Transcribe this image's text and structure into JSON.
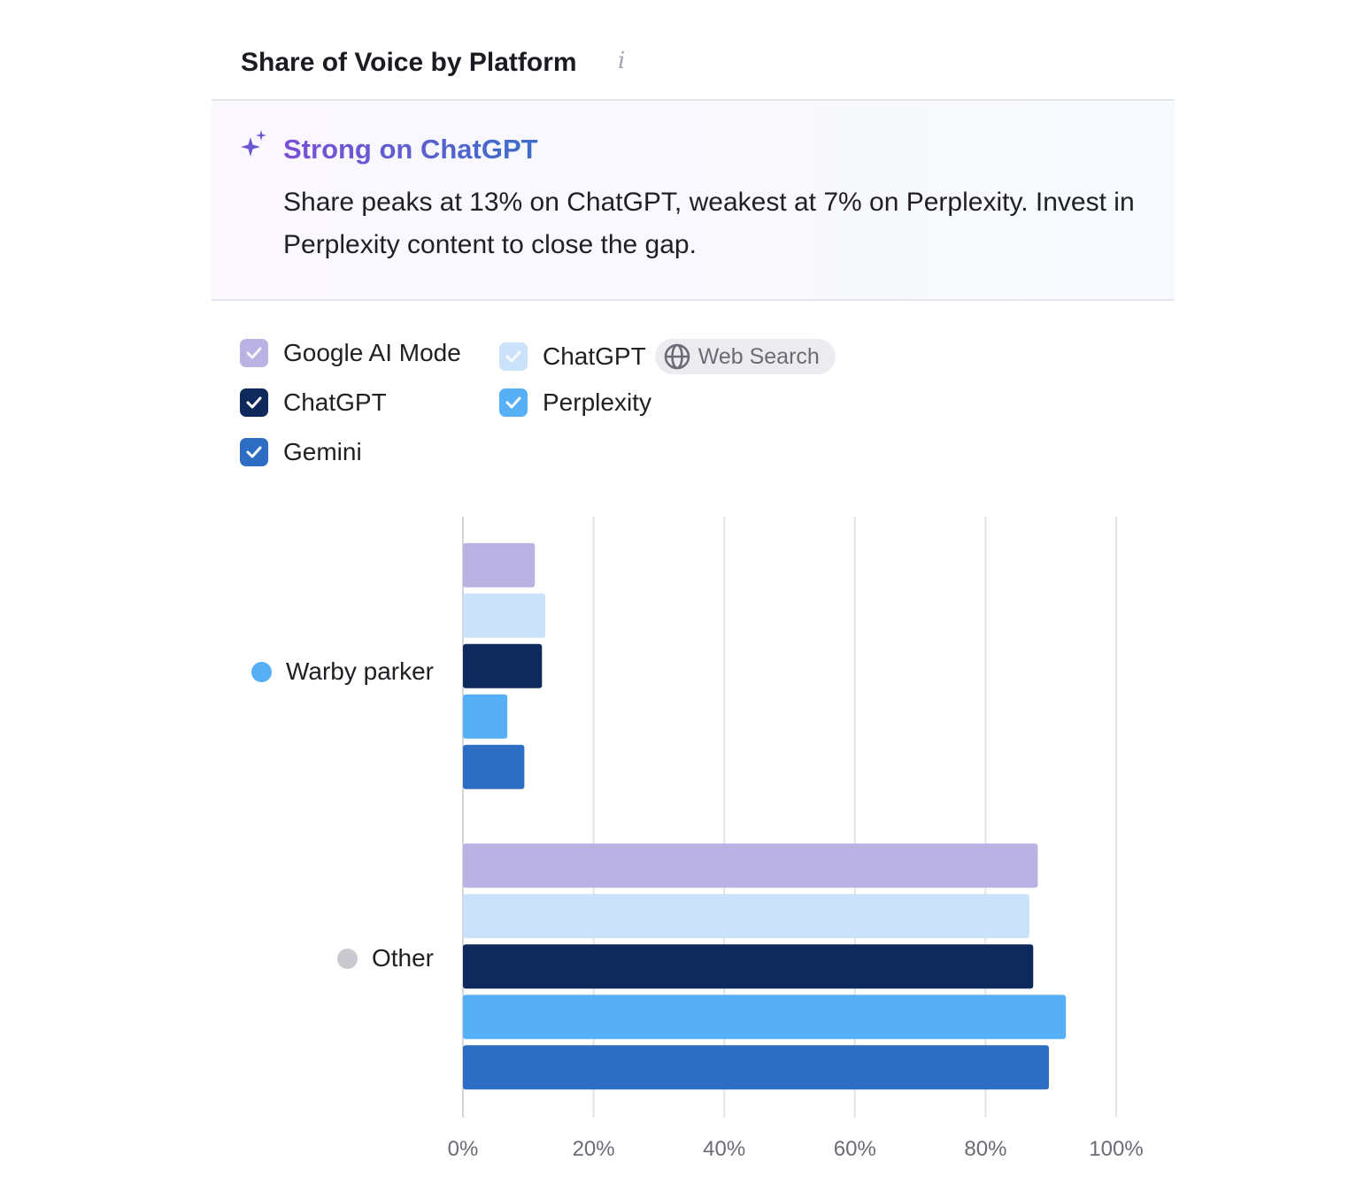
{
  "header": {
    "title": "Share of Voice by Platform",
    "info_icon": "info-icon"
  },
  "insight": {
    "icon": "sparkles-icon",
    "title": "Strong on ChatGPT",
    "text": "Share peaks at 13% on ChatGPT, weakest at 7% on Perplexity. Invest in Perplexity content to close the gap."
  },
  "legend": [
    {
      "label": "Google AI Mode",
      "color": "#bab2e3",
      "checked": true
    },
    {
      "label": "ChatGPT",
      "color": "#cbe3fa",
      "checked": true,
      "badge": "Web Search",
      "badge_icon": "globe-icon"
    },
    {
      "label": "ChatGPT",
      "color": "#0e2a5c",
      "checked": true
    },
    {
      "label": "Perplexity",
      "color": "#57b0f6",
      "checked": true
    },
    {
      "label": "Gemini",
      "color": "#2d6dc4",
      "checked": true
    }
  ],
  "chart_data": {
    "type": "bar",
    "orientation": "horizontal",
    "categories": [
      "Warby parker",
      "Other"
    ],
    "category_colors": [
      "#57b0f6",
      "#c9c9cf"
    ],
    "series": [
      {
        "name": "Google AI Mode",
        "color": "#bab2e3",
        "values": [
          11,
          88
        ]
      },
      {
        "name": "ChatGPT Web Search",
        "color": "#cbe3fa",
        "values": [
          12.6,
          86.7
        ]
      },
      {
        "name": "ChatGPT",
        "color": "#0e2a5c",
        "values": [
          12.1,
          87.3
        ]
      },
      {
        "name": "Perplexity",
        "color": "#57b0f6",
        "values": [
          6.8,
          92.3
        ]
      },
      {
        "name": "Gemini",
        "color": "#2d6dc4",
        "values": [
          9.4,
          89.7
        ]
      }
    ],
    "xlim": [
      0,
      100
    ],
    "xticks": [
      "0%",
      "20%",
      "40%",
      "60%",
      "80%",
      "100%"
    ],
    "grid": true
  }
}
